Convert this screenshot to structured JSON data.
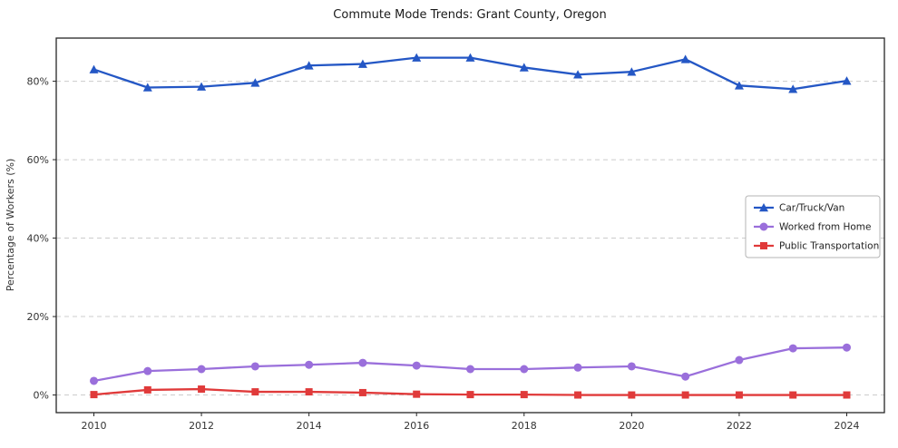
{
  "chart_data": {
    "type": "line",
    "title": "Commute Mode Trends: Grant County, Oregon",
    "xlabel": "",
    "ylabel": "Percentage of Workers (%)",
    "x": [
      2010,
      2011,
      2012,
      2013,
      2014,
      2015,
      2016,
      2017,
      2018,
      2019,
      2020,
      2021,
      2022,
      2023,
      2024
    ],
    "series": [
      {
        "name": "Car/Truck/Van",
        "marker": "triangle",
        "color": "#2457c5",
        "values": [
          83.0,
          78.4,
          78.6,
          79.6,
          84.0,
          84.4,
          86.0,
          86.0,
          83.5,
          81.7,
          82.4,
          85.6,
          78.9,
          78.0,
          80.1
        ]
      },
      {
        "name": "Worked from Home",
        "marker": "circle",
        "color": "#9a6fdb",
        "values": [
          3.6,
          6.1,
          6.6,
          7.3,
          7.7,
          8.2,
          7.5,
          6.6,
          6.6,
          7.0,
          7.3,
          4.7,
          8.9,
          11.9,
          12.1
        ]
      },
      {
        "name": "Public Transportation",
        "marker": "square",
        "color": "#e03a3a",
        "values": [
          0.1,
          1.3,
          1.5,
          0.8,
          0.8,
          0.6,
          0.2,
          0.1,
          0.1,
          0.0,
          0.0,
          0.0,
          0.0,
          0.0,
          0.0
        ]
      }
    ],
    "x_ticks": [
      2010,
      2012,
      2014,
      2016,
      2018,
      2020,
      2022,
      2024
    ],
    "y_ticks": [
      0,
      20,
      40,
      60,
      80
    ],
    "y_tick_suffix": "%",
    "xlim": [
      2009.3,
      2024.7
    ],
    "ylim": [
      -4.5,
      91
    ],
    "grid": "horizontal-dashed",
    "legend": {
      "position": "middle-right",
      "entries": [
        "Car/Truck/Van",
        "Worked from Home",
        "Public Transportation"
      ]
    },
    "colors": {
      "grid": "#cccccc",
      "axis": "#262626",
      "background": "#ffffff",
      "tick_text": "#333333"
    }
  }
}
